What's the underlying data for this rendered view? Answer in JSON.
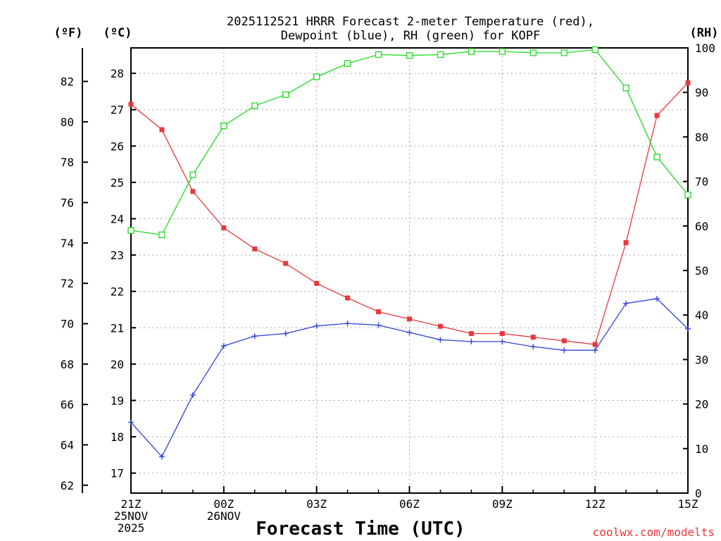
{
  "chart_data": {
    "type": "line",
    "title_line1": "2025112521 HRRR Forecast 2-meter Temperature (red),",
    "title_line2": "Dewpoint (blue), RH (green) for KOPF",
    "unit_f": "(ºF)",
    "unit_c": "(ºC)",
    "unit_rh": "(RH)",
    "xlabel": "Forecast Time (UTC)",
    "credit": "coolwx.com/modelts",
    "x_ticks": [
      {
        "h": 0,
        "lines": [
          "21Z",
          "25NOV",
          "2025"
        ]
      },
      {
        "h": 3,
        "lines": [
          "00Z",
          "26NOV"
        ]
      },
      {
        "h": 6,
        "lines": [
          "03Z"
        ]
      },
      {
        "h": 9,
        "lines": [
          "06Z"
        ]
      },
      {
        "h": 12,
        "lines": [
          "09Z"
        ]
      },
      {
        "h": 15,
        "lines": [
          "12Z"
        ]
      },
      {
        "h": 18,
        "lines": [
          "15Z"
        ]
      }
    ],
    "x_range": [
      0,
      18
    ],
    "celsius_range": [
      16.45,
      28.7
    ],
    "celsius_ticks": [
      "17",
      "18",
      "19",
      "20",
      "21",
      "22",
      "23",
      "24",
      "25",
      "26",
      "27",
      "28"
    ],
    "fahrenheit_ticks": [
      "62",
      "64",
      "66",
      "68",
      "70",
      "72",
      "74",
      "76",
      "78",
      "80",
      "82"
    ],
    "rh_range": [
      0,
      100
    ],
    "rh_ticks": [
      "0",
      "10",
      "20",
      "30",
      "40",
      "50",
      "60",
      "70",
      "80",
      "90",
      "100"
    ],
    "grid": true,
    "series": [
      {
        "name": "Temperature",
        "unit": "C",
        "color": "#e8383d",
        "marker": "filled-square",
        "values": [
          27.15,
          26.45,
          24.75,
          23.75,
          23.17,
          22.77,
          22.22,
          21.82,
          21.44,
          21.24,
          21.04,
          20.84,
          20.84,
          20.74,
          20.64,
          20.54,
          23.34,
          26.84,
          27.74
        ]
      },
      {
        "name": "Dewpoint",
        "unit": "C",
        "color": "#2f44d8",
        "marker": "plus",
        "values": [
          18.4,
          17.45,
          19.15,
          20.5,
          20.77,
          20.84,
          21.05,
          21.12,
          21.07,
          20.87,
          20.67,
          20.62,
          20.62,
          20.48,
          20.38,
          20.38,
          21.67,
          21.8,
          20.97
        ]
      },
      {
        "name": "RH",
        "unit": "%",
        "color": "#1fdc1f",
        "marker": "open-square",
        "values": [
          59,
          58,
          71.5,
          82.5,
          87,
          89.5,
          93.5,
          96.5,
          98.5,
          98.3,
          98.5,
          99.2,
          99.2,
          98.9,
          98.9,
          99.6,
          91,
          75.5,
          67
        ]
      }
    ]
  }
}
